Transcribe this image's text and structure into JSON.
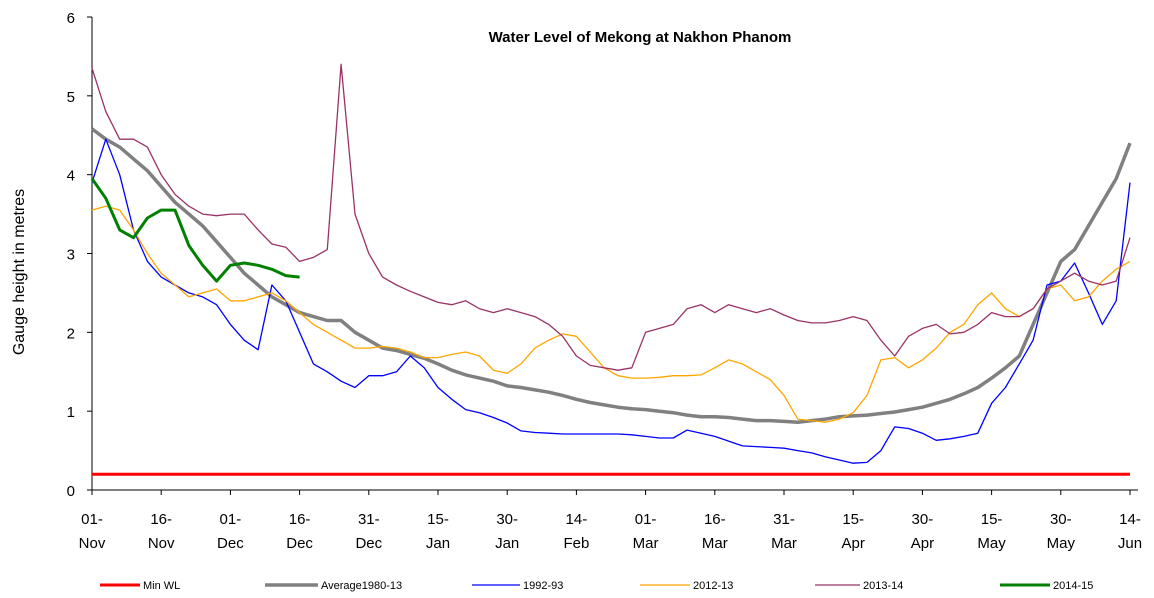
{
  "chart_data": {
    "type": "line",
    "title": "Water Level of Mekong at Nakhon Phanom",
    "y_label": "Gauge height in metres",
    "categories": [
      "01-\nNov",
      null,
      null,
      null,
      null,
      "16-\nNov",
      null,
      null,
      null,
      null,
      "01-\nDec",
      null,
      null,
      null,
      null,
      "16-\nDec",
      null,
      null,
      null,
      null,
      "31-\nDec",
      null,
      null,
      null,
      null,
      "15-\nJan",
      null,
      null,
      null,
      null,
      "30-\nJan",
      null,
      null,
      null,
      null,
      "14-\nFeb",
      null,
      null,
      null,
      null,
      "01-\nMar",
      null,
      null,
      null,
      null,
      "16-\nMar",
      null,
      null,
      null,
      null,
      "31-\nMar",
      null,
      null,
      null,
      null,
      "15-\nApr",
      null,
      null,
      null,
      null,
      "30-\nApr",
      null,
      null,
      null,
      null,
      "15-\nMay",
      null,
      null,
      null,
      null,
      "30-\nMay",
      null,
      null,
      null,
      null,
      "14-\nJun"
    ],
    "ylim": [
      0,
      6
    ],
    "yticks": [
      0,
      1,
      2,
      3,
      4,
      5,
      6
    ],
    "grid": false,
    "legend": "bottom",
    "series": [
      {
        "name": "Min WL",
        "color": "#ff0000",
        "values": [
          0.2,
          0.2,
          0.2,
          0.2,
          0.2,
          0.2,
          0.2,
          0.2,
          0.2,
          0.2,
          0.2,
          0.2,
          0.2,
          0.2,
          0.2,
          0.2,
          0.2,
          0.2,
          0.2,
          0.2,
          0.2,
          0.2,
          0.2,
          0.2,
          0.2,
          0.2,
          0.2,
          0.2,
          0.2,
          0.2,
          0.2,
          0.2,
          0.2,
          0.2,
          0.2,
          0.2,
          0.2,
          0.2,
          0.2,
          0.2,
          0.2,
          0.2,
          0.2,
          0.2,
          0.2,
          0.2,
          0.2,
          0.2,
          0.2,
          0.2,
          0.2,
          0.2,
          0.2,
          0.2,
          0.2,
          0.2,
          0.2,
          0.2,
          0.2,
          0.2,
          0.2,
          0.2,
          0.2,
          0.2,
          0.2,
          0.2,
          0.2,
          0.2,
          0.2,
          0.2,
          0.2,
          0.2,
          0.2,
          0.2,
          0.2,
          0.2
        ]
      },
      {
        "name": "Average1980-13",
        "color": "#808080",
        "values": [
          4.58,
          4.45,
          4.35,
          4.2,
          4.05,
          3.85,
          3.65,
          3.5,
          3.35,
          3.15,
          2.95,
          2.75,
          2.6,
          2.45,
          2.35,
          2.25,
          2.2,
          2.15,
          2.15,
          2.0,
          1.9,
          1.8,
          1.77,
          1.72,
          1.67,
          1.6,
          1.52,
          1.46,
          1.42,
          1.38,
          1.32,
          1.3,
          1.27,
          1.24,
          1.2,
          1.15,
          1.11,
          1.08,
          1.05,
          1.03,
          1.02,
          1.0,
          0.98,
          0.95,
          0.93,
          0.93,
          0.92,
          0.9,
          0.88,
          0.88,
          0.87,
          0.86,
          0.88,
          0.9,
          0.93,
          0.94,
          0.95,
          0.97,
          0.99,
          1.02,
          1.05,
          1.1,
          1.15,
          1.22,
          1.3,
          1.42,
          1.55,
          1.7,
          2.1,
          2.5,
          2.9,
          3.05,
          3.35,
          3.65,
          3.95,
          4.4
        ]
      },
      {
        "name": "1992-93",
        "color": "#0000ff",
        "values": [
          3.9,
          4.45,
          4.0,
          3.3,
          2.9,
          2.7,
          2.6,
          2.5,
          2.45,
          2.35,
          2.1,
          1.9,
          1.78,
          2.6,
          2.4,
          2.0,
          1.6,
          1.5,
          1.38,
          1.3,
          1.45,
          1.45,
          1.5,
          1.7,
          1.55,
          1.3,
          1.15,
          1.02,
          0.98,
          0.92,
          0.85,
          0.75,
          0.73,
          0.72,
          0.71,
          0.71,
          0.71,
          0.71,
          0.71,
          0.7,
          0.68,
          0.66,
          0.66,
          0.76,
          0.72,
          0.68,
          0.62,
          0.56,
          0.55,
          0.54,
          0.53,
          0.5,
          0.47,
          0.42,
          0.38,
          0.34,
          0.35,
          0.5,
          0.8,
          0.78,
          0.72,
          0.63,
          0.65,
          0.68,
          0.72,
          1.1,
          1.3,
          1.6,
          1.9,
          2.6,
          2.65,
          2.88,
          2.5,
          2.1,
          2.4,
          3.9
        ]
      },
      {
        "name": "2012-13",
        "color": "#ffa500",
        "values": [
          3.55,
          3.6,
          3.55,
          3.3,
          3.0,
          2.75,
          2.6,
          2.45,
          2.5,
          2.55,
          2.4,
          2.4,
          2.45,
          2.5,
          2.4,
          2.25,
          2.1,
          2.0,
          1.9,
          1.8,
          1.8,
          1.82,
          1.8,
          1.75,
          1.68,
          1.68,
          1.72,
          1.75,
          1.7,
          1.52,
          1.48,
          1.6,
          1.8,
          1.9,
          1.98,
          1.95,
          1.75,
          1.55,
          1.45,
          1.42,
          1.42,
          1.43,
          1.45,
          1.45,
          1.46,
          1.55,
          1.65,
          1.6,
          1.5,
          1.4,
          1.2,
          0.9,
          0.88,
          0.86,
          0.9,
          0.98,
          1.2,
          1.65,
          1.68,
          1.55,
          1.65,
          1.8,
          2.0,
          2.1,
          2.35,
          2.5,
          2.3,
          2.2,
          2.3,
          2.55,
          2.6,
          2.4,
          2.45,
          2.65,
          2.8,
          2.9
        ]
      },
      {
        "name": "2013-14",
        "color": "#993366",
        "values": [
          5.35,
          4.8,
          4.45,
          4.45,
          4.35,
          4.0,
          3.75,
          3.6,
          3.5,
          3.48,
          3.5,
          3.5,
          3.3,
          3.12,
          3.08,
          2.9,
          2.95,
          3.05,
          5.4,
          3.5,
          3.0,
          2.7,
          2.6,
          2.52,
          2.45,
          2.38,
          2.35,
          2.4,
          2.3,
          2.25,
          2.3,
          2.25,
          2.2,
          2.1,
          1.95,
          1.7,
          1.58,
          1.55,
          1.52,
          1.55,
          2.0,
          2.05,
          2.1,
          2.3,
          2.35,
          2.25,
          2.35,
          2.3,
          2.25,
          2.3,
          2.22,
          2.15,
          2.12,
          2.12,
          2.15,
          2.2,
          2.15,
          1.9,
          1.7,
          1.95,
          2.05,
          2.1,
          1.98,
          2.0,
          2.1,
          2.25,
          2.2,
          2.2,
          2.3,
          2.55,
          2.65,
          2.75,
          2.65,
          2.6,
          2.65,
          3.2
        ]
      },
      {
        "name": "2014-15",
        "color": "#008000",
        "values": [
          3.95,
          3.7,
          3.3,
          3.2,
          3.45,
          3.55,
          3.55,
          3.1,
          2.85,
          2.65,
          2.85,
          2.88,
          2.85,
          2.8,
          2.72,
          2.7,
          null,
          null,
          null,
          null,
          null,
          null,
          null,
          null,
          null,
          null,
          null,
          null,
          null,
          null,
          null,
          null,
          null,
          null,
          null,
          null,
          null,
          null,
          null,
          null,
          null,
          null,
          null,
          null,
          null,
          null,
          null,
          null,
          null,
          null,
          null,
          null,
          null,
          null,
          null,
          null,
          null,
          null,
          null,
          null,
          null,
          null,
          null,
          null,
          null,
          null,
          null,
          null,
          null,
          null,
          null,
          null,
          null,
          null,
          null,
          null
        ]
      }
    ]
  }
}
